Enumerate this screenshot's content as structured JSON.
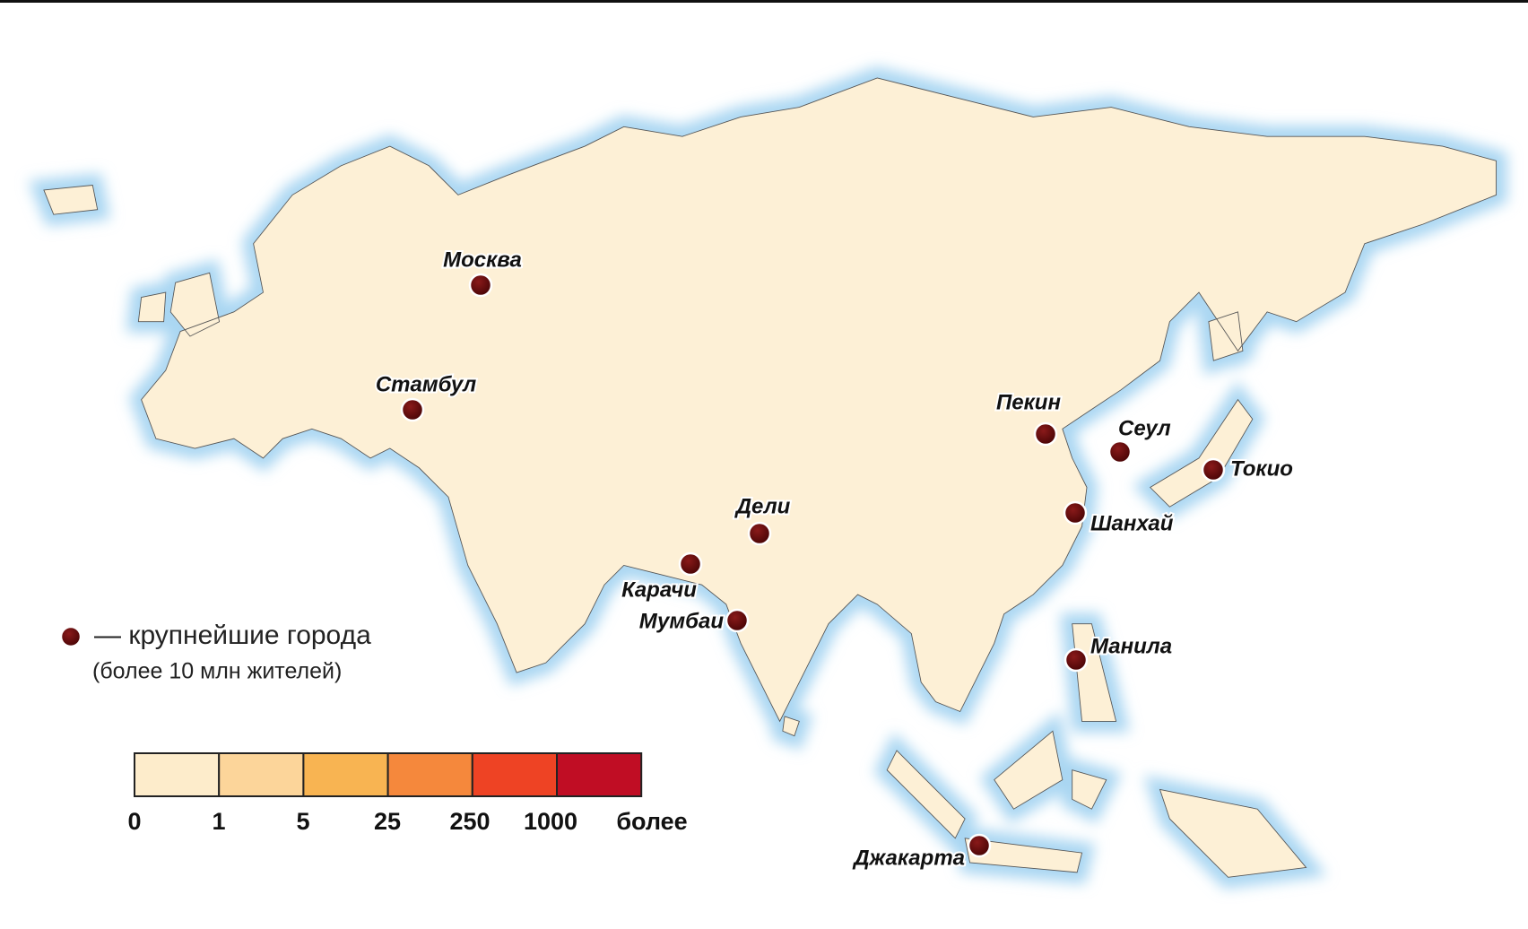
{
  "map": {
    "cities": [
      "Москва",
      "Стамбул",
      "Пекин",
      "Сеул",
      "Токио",
      "Шанхай",
      "Дели",
      "Карачи",
      "Мумбаи",
      "Манила",
      "Джакарта"
    ],
    "legend": {
      "marker_text": "— крупнейшие города",
      "marker_note": "(более 10 млн жителей)",
      "scale": [
        "0",
        "1",
        "5",
        "25",
        "250",
        "1000",
        "более"
      ]
    }
  }
}
